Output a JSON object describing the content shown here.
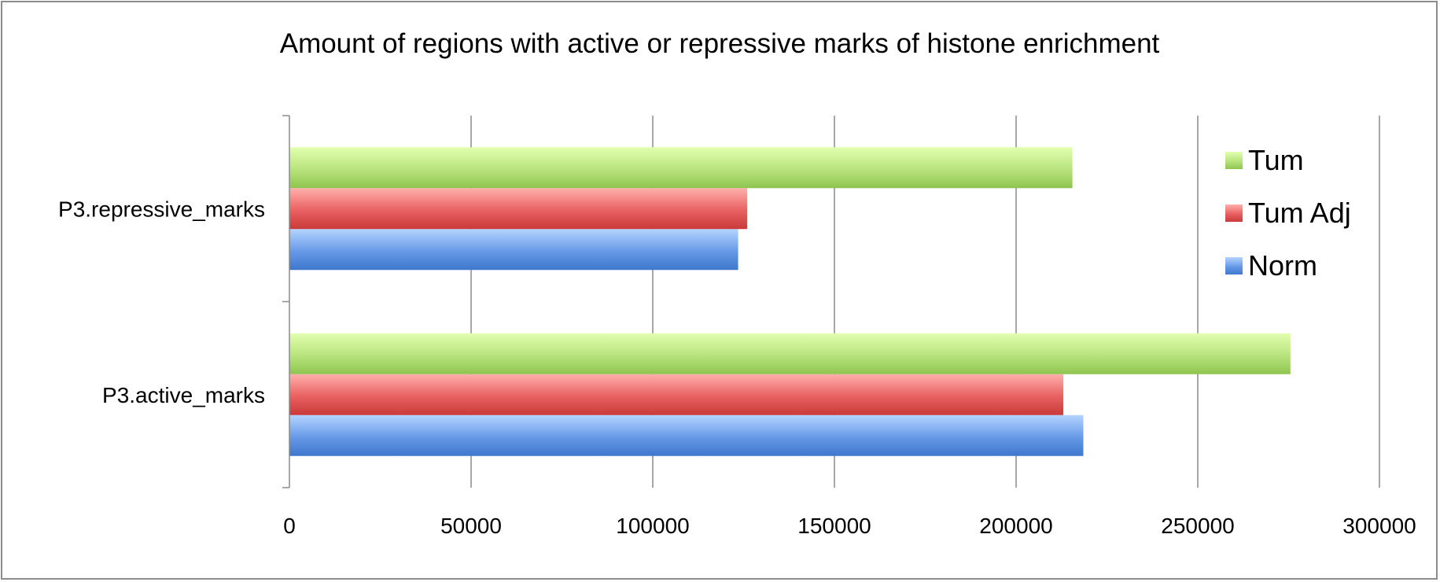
{
  "chart_data": {
    "type": "bar",
    "orientation": "horizontal",
    "title": "Amount of regions with active or repressive marks of histone enrichment",
    "categories": [
      "P3.active_marks",
      "P3.repressive_marks"
    ],
    "series": [
      {
        "name": "Norm",
        "values": [
          218500,
          123500
        ],
        "color": "#5b8fd8"
      },
      {
        "name": "Tum Adj",
        "values": [
          213000,
          126000
        ],
        "color": "#e05a5a"
      },
      {
        "name": "Tum",
        "values": [
          275500,
          215500
        ],
        "color": "#b4e07a"
      }
    ],
    "xlim": [
      0,
      300000
    ],
    "xticks": [
      "0",
      "50000",
      "100000",
      "150000",
      "200000",
      "250000",
      "300000"
    ],
    "xlabel": "",
    "ylabel": "",
    "grid": "vertical",
    "legend_position": "right",
    "legend_order": [
      "Tum",
      "Tum Adj",
      "Norm"
    ]
  }
}
